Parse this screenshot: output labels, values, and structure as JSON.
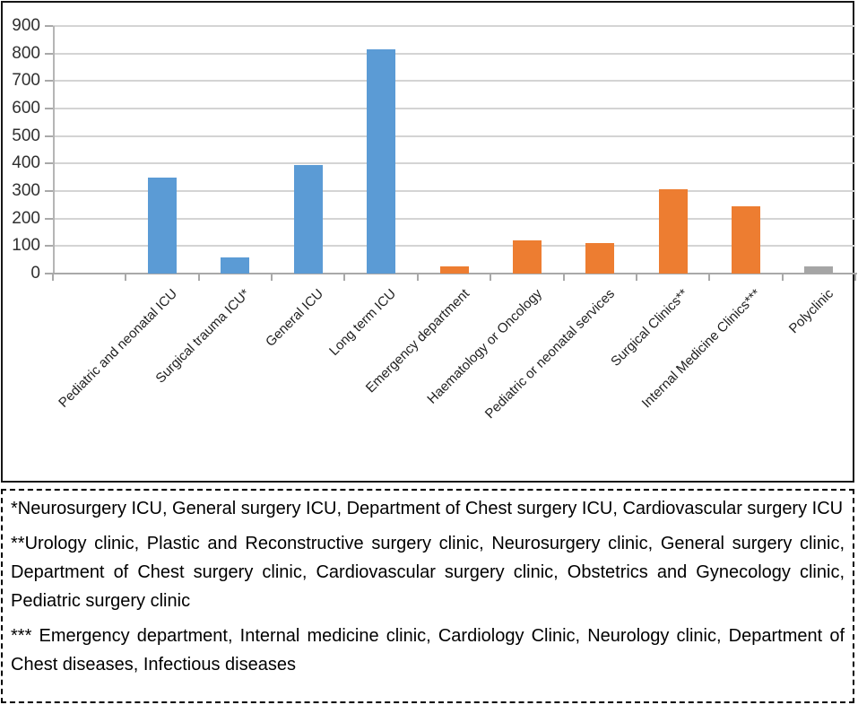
{
  "chart_data": {
    "type": "bar",
    "title": "",
    "categories": [
      "Pediatric and neonatal ICU",
      "Surgical trauma ICU*",
      "General ICU",
      "Long term ICU",
      "Emergency department",
      "Haematology or Oncology",
      "Pediatric or neonatal services",
      "Surgical Clinics**",
      "Internal Medicine Clinics***",
      "Polyclinic"
    ],
    "values": [
      350,
      60,
      395,
      815,
      25,
      120,
      110,
      305,
      245,
      25
    ],
    "bar_colors": [
      "#5B9BD5",
      "#5B9BD5",
      "#5B9BD5",
      "#5B9BD5",
      "#ED7D31",
      "#ED7D31",
      "#ED7D31",
      "#ED7D31",
      "#ED7D31",
      "#A5A5A5"
    ],
    "xlabel": "",
    "ylabel": "",
    "ylim": [
      0,
      900
    ],
    "yticks": [
      0,
      100,
      200,
      300,
      400,
      500,
      600,
      700,
      800,
      900
    ],
    "grid": true,
    "legend": "none",
    "leading_empty_slots": 1,
    "colors": {
      "icu_blue": "#5B9BD5",
      "clinic_orange": "#ED7D31",
      "polyclinic_gray": "#A5A5A5",
      "gridline": "#D4D4D4",
      "axis": "#A9A9A9"
    }
  },
  "footnotes": [
    "*Neurosurgery ICU, General surgery ICU, Department of Chest surgery ICU, Cardiovascular surgery ICU",
    "**Urology clinic, Plastic and Reconstructive surgery clinic, Neurosurgery clinic, General surgery clinic, Department of Chest surgery clinic, Cardiovascular surgery clinic, Obstetrics and Gynecology clinic, Pediatric surgery clinic",
    "*** Emergency department, Internal medicine clinic, Cardiology Clinic, Neurology clinic, Department of Chest diseases, Infectious diseases"
  ]
}
